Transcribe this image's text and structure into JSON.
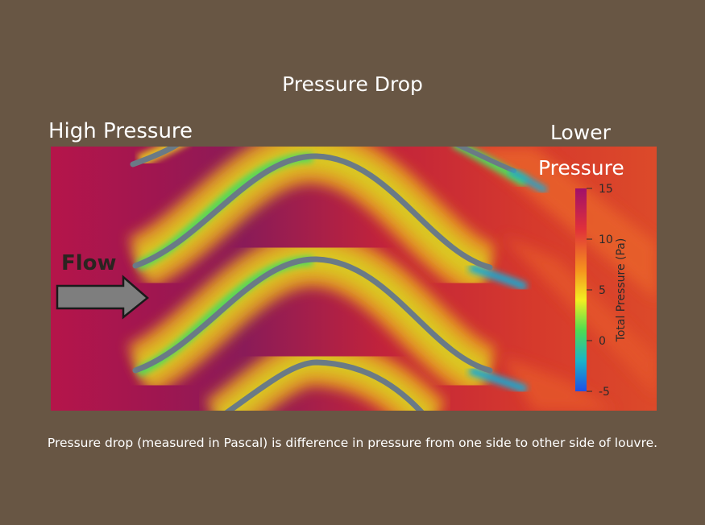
{
  "title": "Pressure Drop",
  "labels": {
    "high": "High Pressure",
    "lower_line1": "Lower",
    "lower_line2": "Pressure",
    "flow": "Flow"
  },
  "colorbar": {
    "title": "Total Pressure (Pa)",
    "ticks": [
      "15",
      "10",
      "5",
      "0",
      "-5"
    ]
  },
  "caption": "Pressure drop (measured in Pascal) is difference in pressure from one side to other side of louvre.",
  "colors": {
    "background": "#685644",
    "high_pressure": "#b5154a",
    "low_zone": "#8a1b58",
    "fin": "#6a7a86"
  },
  "icons": [
    "flow-arrow-icon"
  ]
}
